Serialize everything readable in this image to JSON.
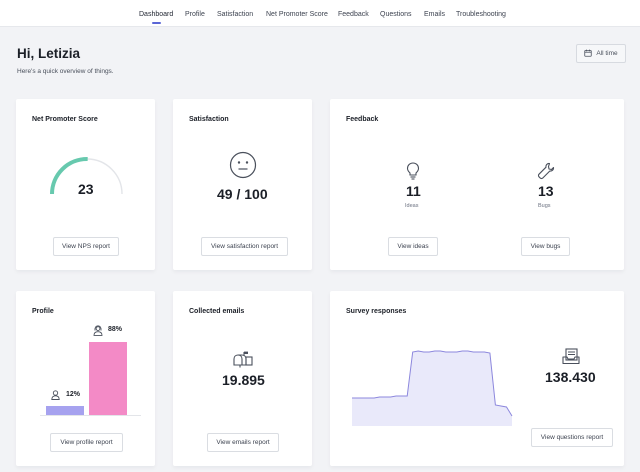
{
  "nav": {
    "items": [
      "Dashboard",
      "Profile",
      "Satisfaction",
      "Net Promoter Score",
      "Feedback",
      "Questions",
      "Emails",
      "Troubleshooting"
    ],
    "active": "Dashboard"
  },
  "header": {
    "greeting": "Hi, Letizia",
    "subtitle": "Here's a quick overview of things.",
    "time_filter": "All time"
  },
  "cards": {
    "nps": {
      "title": "Net Promoter Score",
      "value": "23",
      "gauge_fraction": 0.23,
      "button": "View NPS report"
    },
    "satisfaction": {
      "title": "Satisfaction",
      "value": "49 / 100",
      "button": "View satisfaction report"
    },
    "feedback": {
      "title": "Feedback",
      "ideas_count": "11",
      "ideas_label": "Ideas",
      "bugs_count": "13",
      "bugs_label": "Bugs",
      "ideas_button": "View ideas",
      "bugs_button": "View bugs"
    },
    "profile": {
      "title": "Profile",
      "male_pct": "12%",
      "female_pct": "88%",
      "male_value": 12,
      "female_value": 88,
      "button": "View profile report"
    },
    "emails": {
      "title": "Collected emails",
      "value": "19.895",
      "button": "View emails report"
    },
    "survey": {
      "title": "Survey responses",
      "value": "138.430",
      "button": "View questions report",
      "trend": [
        28,
        28,
        28,
        28,
        28,
        29,
        29,
        29,
        30,
        30,
        30,
        74,
        75,
        74,
        74,
        75,
        75,
        74,
        74,
        74,
        75,
        75,
        74,
        74,
        74,
        73,
        21,
        20,
        19,
        10
      ]
    }
  },
  "colors": {
    "accent": "#5b66d6",
    "nps_arc": "#67c9ae",
    "male_bar": "#a6a2ef",
    "female_bar": "#f38ac6",
    "area_fill": "#e9e9fa",
    "area_line": "#8c87dd"
  }
}
